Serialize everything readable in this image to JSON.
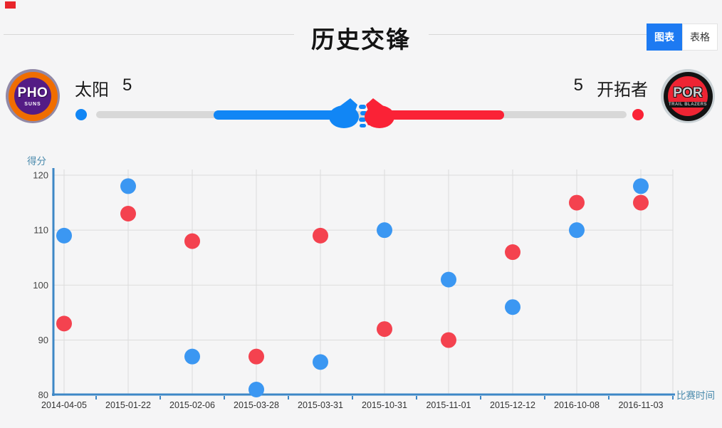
{
  "header": {
    "title": "历史交锋",
    "tabs": [
      {
        "label": "图表",
        "active": true
      },
      {
        "label": "表格",
        "active": false
      }
    ]
  },
  "teams": {
    "home": {
      "name": "太阳",
      "score": "5",
      "logo_abbr": "PHO",
      "logo_sub": "SUNS"
    },
    "away": {
      "name": "开拓者",
      "score": "5",
      "logo_abbr": "POR",
      "logo_sub": "TRAIL BLAZERS"
    }
  },
  "versus_bar": {
    "home_score": 5,
    "away_score": 5
  },
  "chart_data": {
    "type": "scatter",
    "title": "历史交锋",
    "x": [
      "2014-04-05",
      "2015-01-22",
      "2015-02-06",
      "2015-03-28",
      "2015-03-31",
      "2015-10-31",
      "2015-11-01",
      "2015-12-12",
      "2016-10-08",
      "2016-11-03"
    ],
    "series": [
      {
        "name": "太阳",
        "color": "#3b97f2",
        "values": [
          109,
          118,
          87,
          81,
          86,
          110,
          101,
          96,
          110,
          118
        ]
      },
      {
        "name": "开拓者",
        "color": "#f4424f",
        "values": [
          93,
          113,
          108,
          87,
          109,
          92,
          90,
          106,
          115,
          115
        ]
      }
    ],
    "xlabel": "比赛时间",
    "ylabel": "得分",
    "ylim": [
      80,
      120
    ],
    "yticks": [
      80,
      90,
      100,
      110,
      120
    ],
    "grid": true,
    "legend": "none"
  },
  "colors": {
    "accent_blue": "#1d7af2",
    "home_blue": "#1186f5",
    "away_red": "#fa2236",
    "dot_blue": "#3b97f2",
    "dot_red": "#f4424f",
    "axis_blue": "#3d87c6",
    "axis_label_blue": "#4b8bad",
    "grid_line": "#dcdcdc",
    "track_gray": "#d8d8d8",
    "tick_text": "#444444",
    "date_text": "#333333",
    "background": "#f5f5f6"
  }
}
